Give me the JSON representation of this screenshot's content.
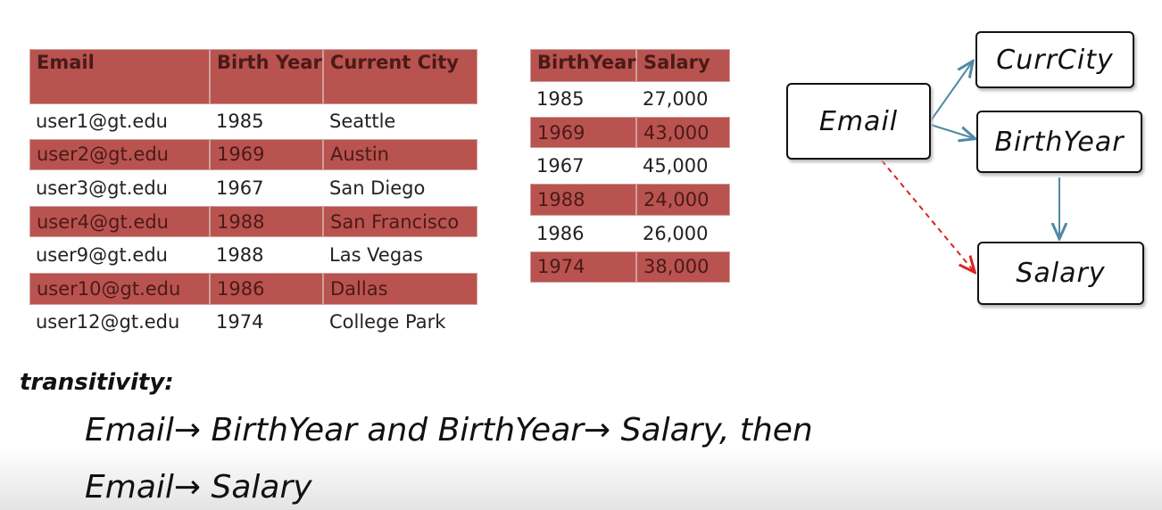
{
  "table1": {
    "headers": [
      "Email",
      "Birth Year",
      "Current City"
    ],
    "rows": [
      [
        "user1@gt.edu",
        "1985",
        "Seattle"
      ],
      [
        "user2@gt.edu",
        "1969",
        "Austin"
      ],
      [
        "user3@gt.edu",
        "1967",
        "San Diego"
      ],
      [
        "user4@gt.edu",
        "1988",
        "San Francisco"
      ],
      [
        "user9@gt.edu",
        "1988",
        "Las Vegas"
      ],
      [
        "user10@gt.edu",
        "1986",
        "Dallas"
      ],
      [
        "user12@gt.edu",
        "1974",
        "College Park"
      ]
    ]
  },
  "table2": {
    "headers": [
      "BirthYear",
      "Salary"
    ],
    "rows": [
      [
        "1985",
        "27,000"
      ],
      [
        "1969",
        "43,000"
      ],
      [
        "1967",
        "45,000"
      ],
      [
        "1988",
        "24,000"
      ],
      [
        "1986",
        "26,000"
      ],
      [
        "1974",
        "38,000"
      ]
    ]
  },
  "diagram": {
    "nodes": [
      {
        "label": "CurrCity"
      },
      {
        "label": "Email"
      },
      {
        "label": "BirthYear"
      },
      {
        "label": "Salary"
      }
    ]
  },
  "note": {
    "label": "transitivity:",
    "lines": [
      "Email→ BirthYear and BirthYear→ Salary, then",
      "Email→ Salary"
    ]
  }
}
